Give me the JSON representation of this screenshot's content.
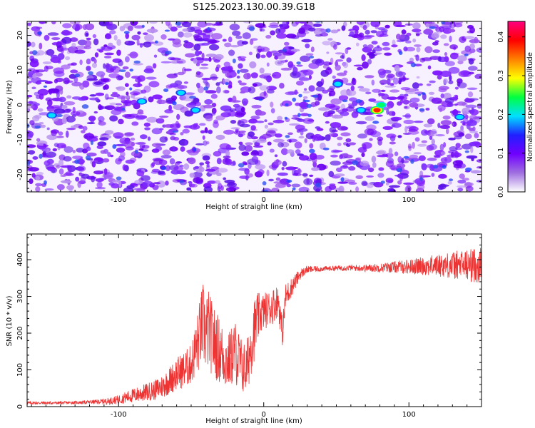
{
  "page_title": "S125.2023.130.00.39.G18",
  "chart_data": [
    {
      "type": "heatmap",
      "title": "S125.2023.130.00.39.G18",
      "xlabel": "Height of straight line (km)",
      "ylabel": "Frequency (Hz)",
      "xlim": [
        -163,
        150
      ],
      "ylim": [
        -25,
        24
      ],
      "xticks": [
        -100,
        0,
        100
      ],
      "yticks": [
        -20,
        -10,
        0,
        10,
        20
      ],
      "colorbar": {
        "label": "Normalized spectral amplitude",
        "range": [
          0.0,
          0.44
        ],
        "ticks": [
          "0.0",
          "0.1",
          "0.2",
          "0.3",
          "0.4"
        ],
        "colormap": [
          "#ffffff",
          "#a070e0",
          "#7000ff",
          "#2020ff",
          "#00e0ff",
          "#00ff40",
          "#ffff00",
          "#ff8000",
          "#ff0000",
          "#ff0080"
        ]
      },
      "features": [
        {
          "label": "peak",
          "x": 78,
          "y": -1.5,
          "value": 0.25
        },
        {
          "label": "peak",
          "x": 81,
          "y": 0.0,
          "value": 0.18
        },
        {
          "label": "peak",
          "x": -146,
          "y": -3.0,
          "value": 0.12
        },
        {
          "label": "peak",
          "x": -84,
          "y": 1.0,
          "value": 0.12
        },
        {
          "label": "peak",
          "x": -57,
          "y": 3.5,
          "value": 0.12
        },
        {
          "label": "peak",
          "x": -47,
          "y": -1.5,
          "value": 0.12
        },
        {
          "label": "peak",
          "x": 135,
          "y": -3.5,
          "value": 0.12
        },
        {
          "label": "peak",
          "x": 67,
          "y": -1.5,
          "value": 0.12
        },
        {
          "label": "peak",
          "x": 51,
          "y": 6.0,
          "value": 0.1
        }
      ]
    },
    {
      "type": "line",
      "xlabel": "Height of straight line (km)",
      "ylabel": "SNR (10 * v/v)",
      "xlim": [
        -163,
        150
      ],
      "ylim": [
        0,
        470
      ],
      "xticks": [
        -100,
        0,
        100
      ],
      "yticks": [
        0,
        100,
        200,
        300,
        400
      ],
      "color": "#ee3333",
      "series": [
        {
          "x": [
            -163,
            -150,
            -140,
            -130,
            -120,
            -110,
            -105,
            -100,
            -95,
            -90,
            -85,
            -80,
            -75,
            -70,
            -65,
            -60,
            -55,
            -50,
            -45,
            -42,
            -40,
            -38,
            -35,
            -30,
            -25,
            -20,
            -15,
            -12,
            -10,
            -8,
            -5,
            -3,
            0,
            5,
            10,
            13,
            15,
            20,
            25,
            30,
            40,
            50,
            60,
            70,
            80,
            90,
            100,
            110,
            120,
            130,
            140,
            150
          ],
          "values": [
            10,
            10,
            10,
            11,
            12,
            14,
            16,
            19,
            25,
            30,
            35,
            40,
            45,
            55,
            70,
            90,
            100,
            115,
            180,
            230,
            200,
            210,
            180,
            150,
            120,
            150,
            110,
            100,
            140,
            190,
            230,
            250,
            260,
            270,
            290,
            200,
            300,
            330,
            360,
            373,
            375,
            377,
            378,
            377,
            378,
            380,
            381,
            383,
            385,
            385,
            385,
            385
          ],
          "noise_amplitude": [
            4,
            4,
            4,
            4,
            5,
            8,
            10,
            12,
            16,
            20,
            22,
            25,
            28,
            32,
            38,
            45,
            50,
            55,
            90,
            110,
            110,
            110,
            100,
            90,
            75,
            90,
            75,
            70,
            80,
            90,
            80,
            60,
            50,
            50,
            45,
            40,
            35,
            25,
            15,
            10,
            7,
            7,
            8,
            10,
            12,
            16,
            20,
            25,
            30,
            38,
            45,
            50
          ]
        }
      ]
    }
  ]
}
